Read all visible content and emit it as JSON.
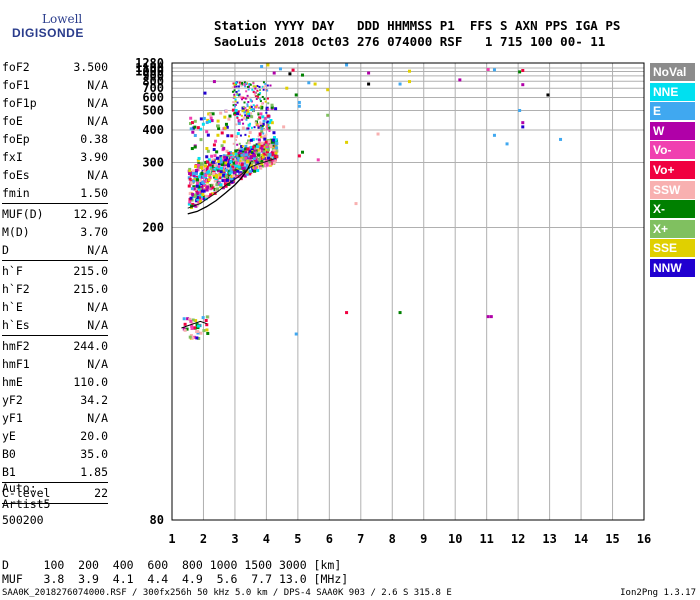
{
  "header": {
    "line1": "Station YYYY DAY   DDD HHMMSS P1  FFS S AXN PPS IGA PS",
    "line2": "SaoLuis 2018 Oct03 276 074000 RSF   1 715 100 00- 11"
  },
  "logo": {
    "line1": "Lowell",
    "line2": "DIGISONDE"
  },
  "params": [
    {
      "label": "foF2",
      "value": "3.500"
    },
    {
      "label": "foF1",
      "value": "N/A"
    },
    {
      "label": "foF1p",
      "value": "N/A"
    },
    {
      "label": "foE",
      "value": "N/A"
    },
    {
      "label": "foEp",
      "value": "0.38"
    },
    {
      "label": "fxI",
      "value": "3.90"
    },
    {
      "label": "foEs",
      "value": "N/A"
    },
    {
      "label": "fmin",
      "value": "1.50"
    },
    {
      "sep": true
    },
    {
      "label": "MUF(D)",
      "value": "12.96"
    },
    {
      "label": "M(D)",
      "value": "3.70"
    },
    {
      "label": "D",
      "value": "N/A"
    },
    {
      "sep": true
    },
    {
      "label": "h`F",
      "value": "215.0"
    },
    {
      "label": "h`F2",
      "value": "215.0"
    },
    {
      "label": "h`E",
      "value": "N/A"
    },
    {
      "label": "h`Es",
      "value": "N/A"
    },
    {
      "sep": true
    },
    {
      "label": "hmF2",
      "value": "244.0"
    },
    {
      "label": "hmF1",
      "value": "N/A"
    },
    {
      "label": "hmE",
      "value": "110.0"
    },
    {
      "label": "yF2",
      "value": "34.2"
    },
    {
      "label": "yF1",
      "value": "N/A"
    },
    {
      "label": "yE",
      "value": "20.0"
    },
    {
      "label": "B0",
      "value": "35.0"
    },
    {
      "label": "B1",
      "value": "1.85"
    },
    {
      "sep": true
    },
    {
      "label": "C-level",
      "value": "22"
    },
    {
      "sep": true
    }
  ],
  "auto": {
    "l1": "Auto:",
    "l2": "Artist5",
    "l3": "500200"
  },
  "legend": [
    {
      "label": "NoVal",
      "color": "#8c8c8c"
    },
    {
      "label": "NNE",
      "color": "#00e0f0"
    },
    {
      "label": "E",
      "color": "#40a8f0"
    },
    {
      "label": "W",
      "color": "#b000a8"
    },
    {
      "label": "Vo-",
      "color": "#f040b0"
    },
    {
      "label": "Vo+",
      "color": "#f00040"
    },
    {
      "label": "SSW",
      "color": "#f8b0b0"
    },
    {
      "label": "X-",
      "color": "#008000"
    },
    {
      "label": "X+",
      "color": "#80c060"
    },
    {
      "label": "SSE",
      "color": "#e0d000"
    },
    {
      "label": "NNW",
      "color": "#2000d0"
    }
  ],
  "table": {
    "d_row": "D     100  200  400  600  800 1000 1500 3000 [km]",
    "muf_row": "MUF   3.8  3.9  4.1  4.4  4.9  5.6  7.7 13.0 [MHz]"
  },
  "footer": {
    "left": "SAA0K_2018276074000.RSF / 300fx256h 50 kHz 5.0 km / DPS-4 SAA0K 903 / 2.6 S 315.8 E",
    "right": "Ion2Png 1.3.17"
  },
  "chart_data": {
    "type": "scatter",
    "xlim": [
      1,
      16
    ],
    "ylim": [
      80,
      1280
    ],
    "yscale": "reciprocal",
    "xticks": [
      1,
      2,
      3,
      4,
      5,
      6,
      7,
      8,
      9,
      10,
      11,
      12,
      13,
      14,
      15,
      16
    ],
    "yticks": [
      80,
      200,
      300,
      400,
      500,
      600,
      700,
      800,
      900,
      1000,
      1100,
      1280
    ],
    "grid": true,
    "profile": {
      "x": [
        1.5,
        1.8,
        2.1,
        2.4,
        2.7,
        3.0,
        3.2,
        3.4,
        3.5
      ],
      "y": [
        215,
        218,
        224,
        232,
        243,
        256,
        268,
        285,
        300
      ]
    },
    "trace": {
      "x": [
        1.5,
        1.7,
        1.9,
        2.1,
        2.3,
        2.5,
        2.7,
        2.9,
        3.1,
        3.3,
        3.5,
        3.7,
        3.9,
        4.1,
        4.3
      ],
      "y": [
        222,
        225,
        228,
        234,
        240,
        247,
        255,
        262,
        270,
        280,
        290,
        296,
        300,
        305,
        310
      ]
    },
    "e_trace": {
      "x": [
        1.3,
        1.5,
        1.7,
        1.9,
        2.1
      ],
      "y": [
        132,
        133,
        134,
        135,
        134
      ]
    },
    "scatter": [
      {
        "x": 4.2,
        "y": 1000,
        "c": "#b000a8"
      },
      {
        "x": 4.8,
        "y": 1080,
        "c": "#f00040"
      },
      {
        "x": 5.1,
        "y": 950,
        "c": "#008000"
      },
      {
        "x": 6.5,
        "y": 1260,
        "c": "#40a8f0"
      },
      {
        "x": 7.2,
        "y": 1000,
        "c": "#b000a8"
      },
      {
        "x": 7.2,
        "y": 780,
        "c": "#000000"
      },
      {
        "x": 8.2,
        "y": 780,
        "c": "#40a8f0"
      },
      {
        "x": 8.5,
        "y": 820,
        "c": "#e0d000"
      },
      {
        "x": 8.5,
        "y": 1050,
        "c": "#e0d000"
      },
      {
        "x": 10.1,
        "y": 850,
        "c": "#b000a8"
      },
      {
        "x": 11.0,
        "y": 1100,
        "c": "#f040b0"
      },
      {
        "x": 11.2,
        "y": 1090,
        "c": "#40a8f0"
      },
      {
        "x": 12.0,
        "y": 1030,
        "c": "#008000"
      },
      {
        "x": 12.1,
        "y": 1070,
        "c": "#f00040"
      },
      {
        "x": 12.1,
        "y": 770,
        "c": "#b000a8"
      },
      {
        "x": 12.9,
        "y": 640,
        "c": "#000000"
      },
      {
        "x": 12.0,
        "y": 510,
        "c": "#40a8f0"
      },
      {
        "x": 12.1,
        "y": 440,
        "c": "#b000a8"
      },
      {
        "x": 12.1,
        "y": 420,
        "c": "#2000d0"
      },
      {
        "x": 11.2,
        "y": 385,
        "c": "#40a8f0"
      },
      {
        "x": 11.6,
        "y": 355,
        "c": "#40a8f0"
      },
      {
        "x": 13.3,
        "y": 370,
        "c": "#40a8f0"
      },
      {
        "x": 11.0,
        "y": 138,
        "c": "#b000a8"
      },
      {
        "x": 11.1,
        "y": 138,
        "c": "#b000a8"
      },
      {
        "x": 8.2,
        "y": 140,
        "c": "#008000"
      },
      {
        "x": 6.8,
        "y": 230,
        "c": "#f8b0b0"
      },
      {
        "x": 7.5,
        "y": 390,
        "c": "#f8b0b0"
      },
      {
        "x": 6.5,
        "y": 360,
        "c": "#e0d000"
      },
      {
        "x": 5.9,
        "y": 700,
        "c": "#e0d000"
      },
      {
        "x": 5.3,
        "y": 800,
        "c": "#40a8f0"
      },
      {
        "x": 5.5,
        "y": 780,
        "c": "#e0d000"
      },
      {
        "x": 5.0,
        "y": 570,
        "c": "#40a8f0"
      },
      {
        "x": 5.0,
        "y": 540,
        "c": "#40a8f0"
      },
      {
        "x": 4.9,
        "y": 640,
        "c": "#008000"
      },
      {
        "x": 4.6,
        "y": 720,
        "c": "#e0d000"
      },
      {
        "x": 4.7,
        "y": 980,
        "c": "#000000"
      },
      {
        "x": 3.8,
        "y": 1200,
        "c": "#40a8f0"
      },
      {
        "x": 2.3,
        "y": 820,
        "c": "#b000a8"
      },
      {
        "x": 2.0,
        "y": 660,
        "c": "#2000d0"
      },
      {
        "x": 4.0,
        "y": 1260,
        "c": "#e0d000"
      },
      {
        "x": 5.1,
        "y": 330,
        "c": "#008000"
      },
      {
        "x": 5.0,
        "y": 320,
        "c": "#f00040"
      },
      {
        "x": 5.6,
        "y": 310,
        "c": "#f040b0"
      },
      {
        "x": 6.5,
        "y": 140,
        "c": "#f00040"
      },
      {
        "x": 4.5,
        "y": 420,
        "c": "#f8b0b0"
      },
      {
        "x": 5.9,
        "y": 480,
        "c": "#80c060"
      },
      {
        "x": 4.4,
        "y": 1120,
        "c": "#40a8f0"
      },
      {
        "x": 4.9,
        "y": 130,
        "c": "#40a8f0"
      }
    ]
  }
}
